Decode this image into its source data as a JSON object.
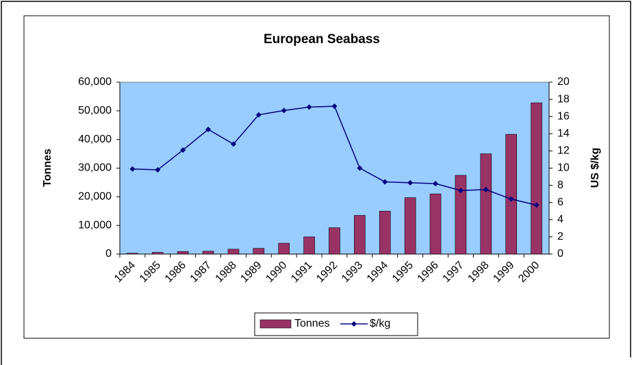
{
  "chart_data": {
    "type": "bar",
    "title": "European Seabass",
    "categories": [
      "1984",
      "1985",
      "1986",
      "1987",
      "1988",
      "1989",
      "1990",
      "1991",
      "1992",
      "1993",
      "1994",
      "1995",
      "1996",
      "1997",
      "1998",
      "1999",
      "2000"
    ],
    "series": [
      {
        "name": "Tonnes",
        "type": "bar",
        "color": "#993366",
        "values": [
          300,
          600,
          900,
          1000,
          1700,
          2000,
          3800,
          6000,
          9200,
          13500,
          15000,
          19700,
          21000,
          27500,
          35000,
          41800,
          52800
        ]
      },
      {
        "name": "$/kg",
        "type": "line",
        "axis": "y2",
        "color": "#000080",
        "values": [
          9.9,
          9.8,
          12.1,
          14.5,
          12.8,
          16.2,
          16.7,
          17.1,
          17.2,
          10.0,
          8.4,
          8.3,
          8.2,
          7.4,
          7.5,
          6.4,
          5.7
        ]
      }
    ],
    "ylabel": "Tonnes",
    "y2label": "US $/kg",
    "ylim": [
      0,
      60000
    ],
    "yticks": [
      0,
      {
        "value": 10000,
        "label": "10,000"
      },
      {
        "value": 20000,
        "label": "20,000"
      },
      {
        "value": 30000,
        "label": "30,000"
      },
      {
        "value": 40000,
        "label": "40,000"
      },
      {
        "value": 50000,
        "label": "50,000"
      },
      {
        "value": 60000,
        "label": "60,000"
      }
    ],
    "y2lim": [
      0,
      20
    ],
    "y2ticks": [
      0,
      2,
      4,
      6,
      8,
      10,
      12,
      14,
      16,
      18,
      20
    ],
    "legend": "bottom",
    "plot_background": "#99ccff"
  }
}
